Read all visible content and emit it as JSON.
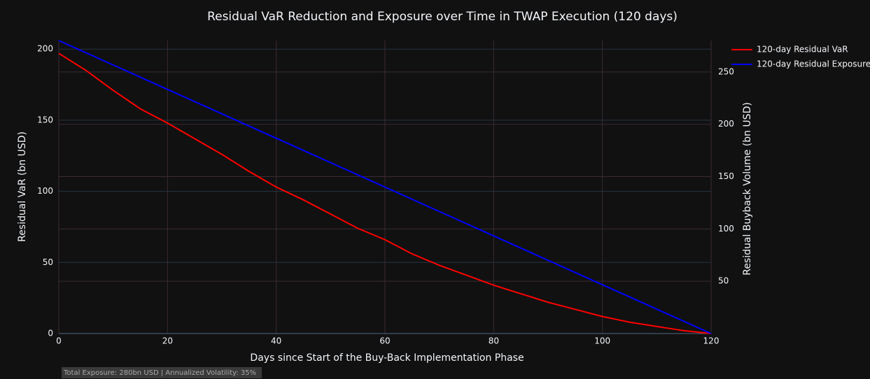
{
  "chart_data": {
    "type": "line",
    "title": "Residual VaR Reduction and Exposure over Time in TWAP Execution (120 days)",
    "x_label": "Days since Start of the Buy-Back Implementation Phase",
    "y_label": "Residual VaR (bn USD)",
    "y2_label": "Residual Buyback Volume (bn USD)",
    "annotation": "Total Exposure: 280bn USD | Annualized Volatility: 35%",
    "xlim": [
      0,
      120
    ],
    "xticks": [
      0,
      20,
      40,
      60,
      80,
      100,
      120
    ],
    "ylim": [
      0,
      206
    ],
    "yticks": [
      0,
      50,
      100,
      150,
      200
    ],
    "y2lim": [
      0,
      280
    ],
    "y2ticks": [
      50,
      100,
      150,
      200,
      250
    ],
    "grid": true,
    "legend": "top-right",
    "series": [
      {
        "name": "120-day Residual VaR",
        "color": "#ff0000",
        "x": [
          0,
          5,
          10,
          15,
          20,
          25,
          30,
          35,
          40,
          45,
          50,
          55,
          60,
          65,
          70,
          75,
          80,
          85,
          90,
          95,
          100,
          105,
          110,
          115,
          120
        ],
        "values": [
          197,
          185,
          171,
          158,
          148,
          137,
          126,
          114,
          103,
          94,
          84,
          74,
          66,
          56,
          48,
          41,
          34,
          28,
          22,
          17,
          12,
          8,
          5,
          2,
          0
        ]
      },
      {
        "name": "120-day Residual Exposure",
        "color": "#0000ff",
        "axis": "y2",
        "x": [
          0,
          120
        ],
        "values": [
          280,
          0
        ]
      }
    ]
  }
}
